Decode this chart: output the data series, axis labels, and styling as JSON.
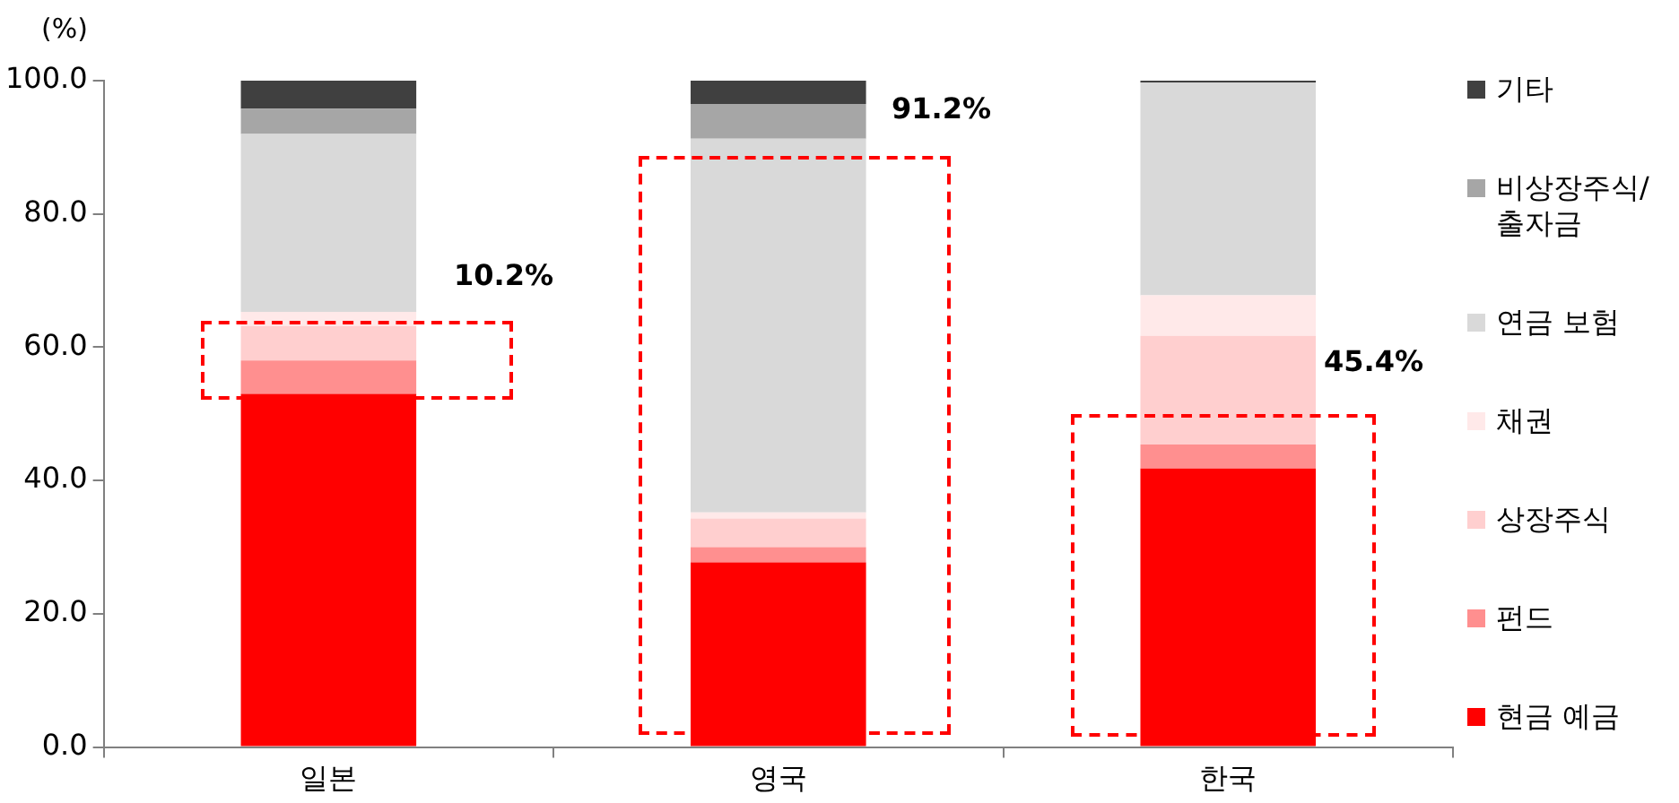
{
  "chart_data": {
    "type": "bar",
    "stacked": true,
    "ylabel": "(%)",
    "categories": [
      "일본",
      "영국",
      "한국"
    ],
    "ylim": [
      0,
      100
    ],
    "yticks": [
      {
        "value": 0,
        "label": "0.0"
      },
      {
        "value": 20,
        "label": "20.0"
      },
      {
        "value": 40,
        "label": "40.0"
      },
      {
        "value": 60,
        "label": "60.0"
      },
      {
        "value": 80,
        "label": "80.0"
      },
      {
        "value": 100,
        "label": "100.0"
      }
    ],
    "grid": false,
    "legend": "right",
    "series": [
      {
        "name": "현금 예금",
        "color": "#ff0000",
        "values": [
          53.0,
          27.7,
          41.8
        ]
      },
      {
        "name": "펀드",
        "color": "#ff8f8f",
        "values": [
          5.0,
          2.3,
          3.6
        ]
      },
      {
        "name": "상장주식",
        "color": "#ffcfcf",
        "values": [
          5.2,
          4.3,
          16.3
        ]
      },
      {
        "name": "채권",
        "color": "#ffe9e9",
        "values": [
          2.1,
          0.9,
          6.1
        ]
      },
      {
        "name": "연금 보험",
        "color": "#d9d9d9",
        "values": [
          26.7,
          56.1,
          31.9
        ]
      },
      {
        "name": "비상장주식/출자금",
        "color": "#a6a6a6",
        "values": [
          3.8,
          5.2,
          0
        ]
      },
      {
        "name": "기타",
        "color": "#404040",
        "values": [
          4.2,
          3.5,
          0.3
        ]
      }
    ],
    "annotations": [
      "10.2%",
      "91.2%",
      "45.4%"
    ]
  }
}
